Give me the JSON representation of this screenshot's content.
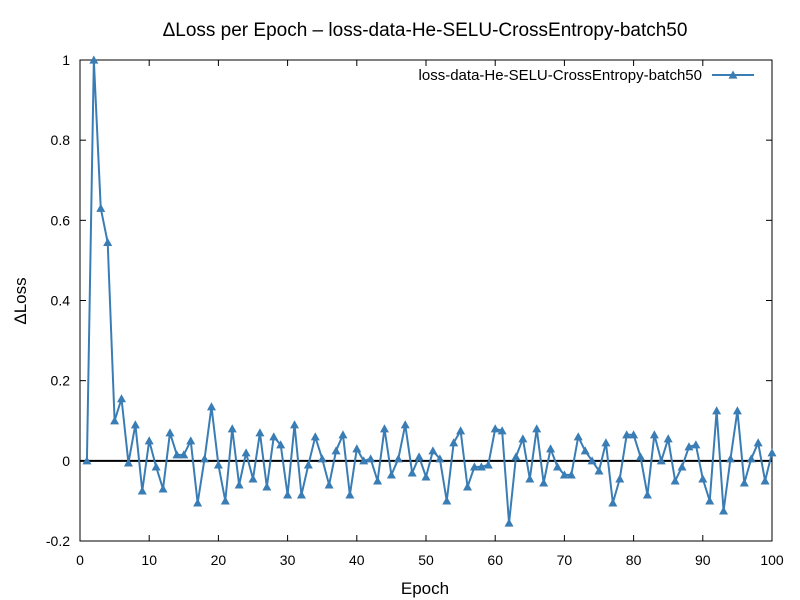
{
  "chart_data": {
    "type": "line",
    "title": "ΔLoss per Epoch – loss-data-He-SELU-CrossEntropy-batch50",
    "xlabel": "Epoch",
    "ylabel": "ΔLoss",
    "xlim": [
      0,
      100
    ],
    "ylim": [
      -0.2,
      1
    ],
    "xticks": [
      "0",
      "10",
      "20",
      "30",
      "40",
      "50",
      "60",
      "70",
      "80",
      "90",
      "100"
    ],
    "yticks": [
      "-0.2",
      "0",
      "0.2",
      "0.4",
      "0.6",
      "0.8",
      "1"
    ],
    "grid": false,
    "legend_position": "top-right",
    "zero_line": true,
    "series": [
      {
        "name": "loss-data-He-SELU-CrossEntropy-batch50",
        "color": "#3a7db5",
        "marker": "triangle",
        "x": [
          1,
          2,
          3,
          4,
          5,
          6,
          7,
          8,
          9,
          10,
          11,
          12,
          13,
          14,
          15,
          16,
          17,
          18,
          19,
          20,
          21,
          22,
          23,
          24,
          25,
          26,
          27,
          28,
          29,
          30,
          31,
          32,
          33,
          34,
          35,
          36,
          37,
          38,
          39,
          40,
          41,
          42,
          43,
          44,
          45,
          46,
          47,
          48,
          49,
          50,
          51,
          52,
          53,
          54,
          55,
          56,
          57,
          58,
          59,
          60,
          61,
          62,
          63,
          64,
          65,
          66,
          67,
          68,
          69,
          70,
          71,
          72,
          73,
          74,
          75,
          76,
          77,
          78,
          79,
          80,
          81,
          82,
          83,
          84,
          85,
          86,
          87,
          88,
          89,
          90,
          91,
          92,
          93,
          94,
          95,
          96,
          97,
          98,
          99,
          100
        ],
        "y": [
          0.0,
          1.0,
          0.63,
          0.545,
          0.1,
          0.155,
          -0.005,
          0.09,
          -0.075,
          0.05,
          -0.015,
          -0.07,
          0.07,
          0.015,
          0.015,
          0.05,
          -0.105,
          0.005,
          0.135,
          -0.01,
          -0.1,
          0.08,
          -0.06,
          0.02,
          -0.045,
          0.07,
          -0.065,
          0.06,
          0.04,
          -0.085,
          0.09,
          -0.085,
          -0.01,
          0.06,
          0.005,
          -0.06,
          0.025,
          0.065,
          -0.085,
          0.03,
          0.0,
          0.005,
          -0.05,
          0.08,
          -0.035,
          0.005,
          0.09,
          -0.03,
          0.01,
          -0.04,
          0.025,
          0.005,
          -0.1,
          0.045,
          0.075,
          -0.065,
          -0.015,
          -0.015,
          -0.01,
          0.08,
          0.075,
          -0.155,
          0.01,
          0.055,
          -0.045,
          0.08,
          -0.055,
          0.03,
          -0.015,
          -0.035,
          -0.035,
          0.06,
          0.025,
          0.0,
          -0.025,
          0.045,
          -0.105,
          -0.045,
          0.065,
          0.065,
          0.01,
          -0.085,
          0.065,
          0.0,
          0.055,
          -0.05,
          -0.015,
          0.035,
          0.04,
          -0.045,
          -0.1,
          0.125,
          -0.125,
          0.005,
          0.125,
          -0.055,
          0.005,
          0.045,
          -0.05,
          0.02
        ]
      }
    ]
  }
}
